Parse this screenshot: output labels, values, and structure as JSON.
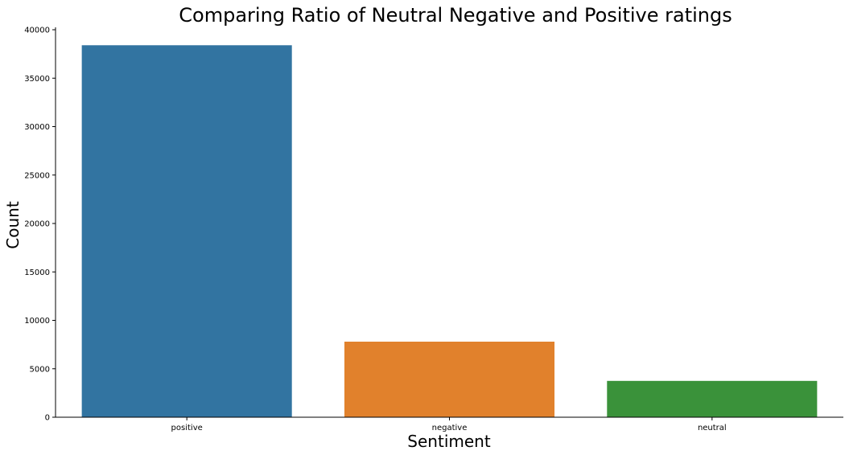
{
  "chart_data": {
    "type": "bar",
    "title": "Comparing Ratio of Neutral Negative and Positive ratings",
    "xlabel": "Sentiment",
    "ylabel": "Count",
    "categories": [
      "positive",
      "negative",
      "neutral"
    ],
    "values": [
      38400,
      7800,
      3750
    ],
    "colors": [
      "#3274a1",
      "#e1812c",
      "#3a923a"
    ],
    "ylim": [
      0,
      40000
    ],
    "yticks": [
      0,
      5000,
      10000,
      15000,
      20000,
      25000,
      30000,
      35000,
      40000
    ],
    "grid": false,
    "legend": "none"
  }
}
